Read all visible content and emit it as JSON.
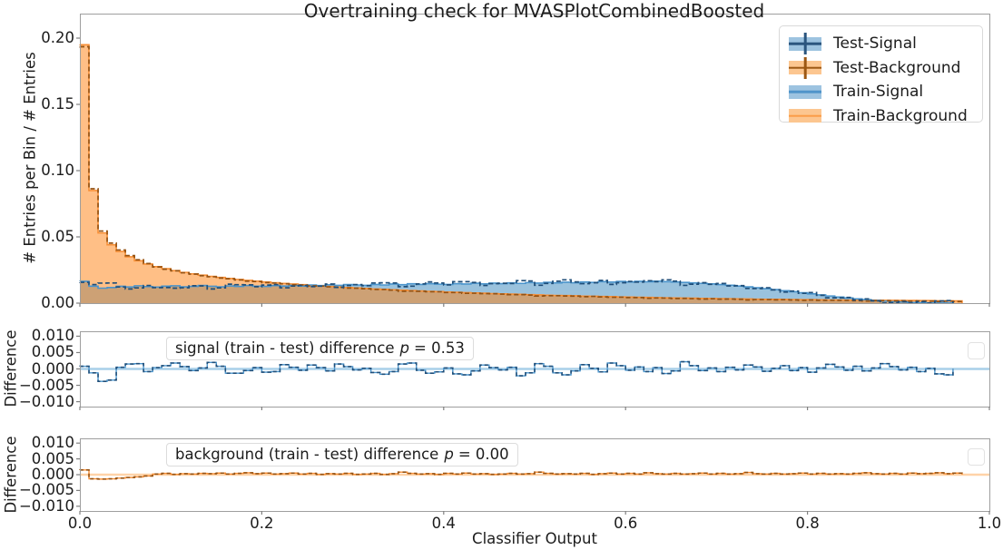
{
  "figure": {
    "title": "Overtraining check for MVASPlotCombinedBoosted"
  },
  "main_panel": {
    "ylabel": "# Entries per Bin / # Entries",
    "ytick_labels": [
      "0.00",
      "0.05",
      "0.10",
      "0.15",
      "0.20"
    ],
    "ytick_values": [
      0,
      0.05,
      0.1,
      0.15,
      0.2
    ]
  },
  "xaxis": {
    "label": "Classifier Output",
    "tick_labels": [
      "0.0",
      "0.2",
      "0.4",
      "0.6",
      "0.8",
      "1.0"
    ],
    "tick_values": [
      0,
      0.2,
      0.4,
      0.6,
      0.8,
      1.0
    ]
  },
  "diff_axis": {
    "ylabel": "Difference",
    "ytick_labels": [
      "0.010",
      "0.005",
      "0.000",
      "−0.005",
      "−0.010"
    ],
    "ytick_values": [
      0.01,
      0.005,
      0.0,
      -0.005,
      -0.01
    ]
  },
  "legend": {
    "items": [
      {
        "label": "Test-Signal",
        "marker": "cross",
        "patch": "#9dc3e0",
        "marker_color": "#2a557e"
      },
      {
        "label": "Test-Background",
        "marker": "cross",
        "patch": "#fcc690",
        "marker_color": "#9c5713"
      },
      {
        "label": "Train-Signal",
        "marker": "line",
        "patch": "#9dc3e0",
        "marker_color": "#4f94ca"
      },
      {
        "label": "Train-Background",
        "marker": "line",
        "patch": "#fcc690",
        "marker_color": "#fb9c47"
      }
    ]
  },
  "annotations": {
    "signal": {
      "prefix": "signal (train - test) difference",
      "p_symbol": "p",
      "p_value": "= 0.53"
    },
    "background": {
      "prefix": "background (train - test) difference",
      "p_symbol": "p",
      "p_value": "= 0.00"
    }
  },
  "colors": {
    "signal_fill": "rgba(31,119,180,0.45)",
    "signal_edge": "#4a94cc",
    "signal_test_dash": "#1f4e79",
    "background_fill": "rgba(255,127,14,0.5)",
    "background_edge": "#f88f35",
    "background_test_dash": "#955212",
    "signal_ref_line": "#a8cfe9",
    "background_ref_line": "#ffd3a8",
    "spine": "#9e9e9e",
    "tick": "#808080"
  },
  "chart_data": [
    {
      "type": "area",
      "title": "Overtraining check for MVASPlotCombinedBoosted",
      "xlabel": "Classifier Output",
      "ylabel": "# Entries per Bin / # Entries",
      "xlim": [
        0,
        1.0
      ],
      "ylim": [
        0,
        0.2185
      ],
      "bins": {
        "start": 0,
        "width": 0.01,
        "count": 100
      },
      "note": "step histograms; Test-Signal = Train-Signal minus signal_diff; Test-Background = Train-Background minus background_diff; test series drawn dashed dark over filled train histograms",
      "series": [
        {
          "name": "Train-Signal",
          "values": [
            0.0165,
            0.0128,
            0.0113,
            0.0118,
            0.0127,
            0.0122,
            0.0131,
            0.0125,
            0.0121,
            0.0128,
            0.0131,
            0.0123,
            0.0126,
            0.0133,
            0.0127,
            0.0123,
            0.013,
            0.0126,
            0.0133,
            0.0128,
            0.0126,
            0.0132,
            0.0129,
            0.0134,
            0.0129,
            0.0137,
            0.0132,
            0.0138,
            0.0134,
            0.014,
            0.0137,
            0.0134,
            0.0141,
            0.0137,
            0.0144,
            0.0139,
            0.0146,
            0.0141,
            0.0147,
            0.0143,
            0.0141,
            0.0147,
            0.0144,
            0.015,
            0.0145,
            0.0151,
            0.0147,
            0.0153,
            0.0149,
            0.0155,
            0.0151,
            0.0157,
            0.0153,
            0.0158,
            0.0154,
            0.016,
            0.0156,
            0.0162,
            0.0159,
            0.0164,
            0.016,
            0.0165,
            0.0161,
            0.0166,
            0.0162,
            0.016,
            0.0156,
            0.0153,
            0.0149,
            0.0145,
            0.014,
            0.0135,
            0.0129,
            0.0123,
            0.0116,
            0.0109,
            0.0102,
            0.0094,
            0.0086,
            0.0078,
            0.007,
            0.0062,
            0.0054,
            0.0046,
            0.0039,
            0.0032,
            0.0026,
            0.002,
            0.0015,
            0.0011,
            0.0008,
            0.0005,
            0.0003,
            0.0002,
            0.0001,
            0.0001,
            0,
            0,
            0,
            0
          ]
        },
        {
          "name": "Train-Background",
          "values": [
            0.195,
            0.085,
            0.053,
            0.044,
            0.039,
            0.035,
            0.032,
            0.0295,
            0.0275,
            0.026,
            0.0245,
            0.0232,
            0.0221,
            0.0211,
            0.0202,
            0.0194,
            0.0186,
            0.0179,
            0.0172,
            0.0166,
            0.016,
            0.0154,
            0.0149,
            0.0144,
            0.0139,
            0.0134,
            0.013,
            0.0126,
            0.0122,
            0.0118,
            0.0114,
            0.0111,
            0.0107,
            0.0104,
            0.0101,
            0.0098,
            0.0095,
            0.0092,
            0.0089,
            0.0087,
            0.0084,
            0.0082,
            0.0079,
            0.0077,
            0.0075,
            0.0072,
            0.007,
            0.0068,
            0.0066,
            0.0064,
            0.0062,
            0.006,
            0.0058,
            0.0057,
            0.0055,
            0.0053,
            0.0052,
            0.005,
            0.0049,
            0.0047,
            0.0046,
            0.0044,
            0.0043,
            0.0042,
            0.004,
            0.0039,
            0.0038,
            0.0037,
            0.0036,
            0.0035,
            0.0034,
            0.0033,
            0.0032,
            0.0031,
            0.003,
            0.0029,
            0.0029,
            0.0028,
            0.0027,
            0.0026,
            0.0026,
            0.0025,
            0.0024,
            0.0024,
            0.0023,
            0.0023,
            0.0022,
            0.0022,
            0.0021,
            0.0021,
            0.002,
            0.002,
            0.0019,
            0.0019,
            0.0018,
            0.0018,
            0.0017,
            0,
            0,
            0
          ]
        }
      ]
    },
    {
      "type": "line",
      "title": "signal (train - test) difference p = 0.53",
      "ylabel": "Difference",
      "ylim": [
        -0.0115,
        0.0115
      ],
      "bins": {
        "start": 0,
        "width": 0.01,
        "count": 100
      },
      "series": [
        {
          "name": "signal_diff",
          "values": [
            0.0008,
            -0.0012,
            -0.0038,
            -0.0034,
            0.0005,
            0.0015,
            0.0016,
            -0.0008,
            0.0004,
            0.001,
            0.0018,
            0.0007,
            -0.0005,
            0.0003,
            0.002,
            0.0008,
            -0.0013,
            -0.0013,
            -0.0005,
            0.0004,
            -0.001,
            -0.0008,
            0.0013,
            0.0005,
            -0.0004,
            0.0012,
            0.0004,
            -0.0006,
            0.0015,
            0.0007,
            -0.0003,
            0.0002,
            -0.0011,
            -0.0016,
            -0.0008,
            0.0015,
            0.0018,
            -0.0004,
            -0.0013,
            -0.0009,
            0.0003,
            -0.0015,
            -0.0018,
            -0.0006,
            0.0012,
            0.0004,
            -0.0003,
            0.0005,
            -0.0021,
            -0.0012,
            0.0016,
            0.0008,
            -0.0012,
            -0.0018,
            -0.0006,
            0.0013,
            0.0002,
            -0.0009,
            0.0018,
            0.001,
            -0.0004,
            0.0006,
            -0.0008,
            0.0004,
            -0.0014,
            -0.0006,
            0.0022,
            0.001,
            -0.0005,
            0.0003,
            -0.0008,
            0.0005,
            -0.0003,
            0.0012,
            0.0006,
            -0.0007,
            0.0002,
            0.001,
            -0.0005,
            0.0004,
            -0.001,
            0.0003,
            0.0014,
            0.0006,
            -0.0004,
            0.0008,
            -0.0006,
            0.0003,
            0.0016,
            0.0007,
            -0.0003,
            0.0005,
            -0.0008,
            0.0002,
            -0.0015,
            -0.0018,
            0,
            0,
            0,
            0
          ]
        }
      ]
    },
    {
      "type": "line",
      "title": "background (train - test) difference p = 0.00",
      "ylabel": "Difference",
      "ylim": [
        -0.0115,
        0.0115
      ],
      "bins": {
        "start": 0,
        "width": 0.01,
        "count": 100
      },
      "series": [
        {
          "name": "background_diff",
          "values": [
            0.0015,
            -0.0013,
            -0.0014,
            -0.0013,
            -0.0011,
            -0.0009,
            -0.0007,
            -0.0004,
            0.0002,
            0.0004,
            0.0001,
            0.0003,
            0.0002,
            0.0004,
            0.0003,
            0.0005,
            0.0002,
            0.0004,
            0.0006,
            0.0003,
            0.0005,
            0.0002,
            0.0003,
            0.0005,
            0.0002,
            0.0004,
            0.0001,
            0.0003,
            0.0002,
            0.0004,
            0.0001,
            0.0002,
            0.0004,
            0.0001,
            0.0003,
            0.0008,
            0.0004,
            0.0002,
            0.0003,
            0.0001,
            0.0004,
            0.0002,
            0.0005,
            0.0002,
            0.0003,
            0.0001,
            0.0002,
            0.0004,
            0.0002,
            0.0003,
            0.0008,
            0.0004,
            0.0002,
            0.0003,
            0.0002,
            0.0004,
            0.0001,
            0.0003,
            0.0005,
            0.0002,
            0.0004,
            0.0002,
            0.0006,
            0.0003,
            0.0002,
            0.0004,
            0.0002,
            0.0003,
            0.0005,
            0.0002,
            0.0004,
            0.0002,
            0.0003,
            0.0007,
            0.0003,
            0.0002,
            0.0004,
            0.0002,
            0.0003,
            0.0005,
            0.0002,
            0.0004,
            0.0002,
            0.0003,
            0.0002,
            0.0004,
            0.0006,
            0.0003,
            0.0002,
            0.0004,
            0.0002,
            0.0005,
            0.0003,
            0.0004,
            0.0006,
            0.0003,
            0.0005,
            0,
            0,
            0
          ]
        }
      ]
    }
  ]
}
